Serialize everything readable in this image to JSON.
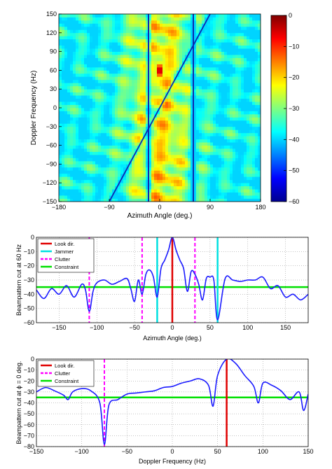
{
  "chart_data": [
    {
      "type": "heatmap",
      "xlabel": "Azimuth Angle (deg.)",
      "ylabel": "Doppler Frequency (Hz)",
      "xlim": [
        -180,
        180
      ],
      "ylim": [
        -150,
        150
      ],
      "xticks": [
        -180,
        -90,
        0,
        90,
        180
      ],
      "yticks": [
        -150,
        -120,
        -90,
        -60,
        -30,
        0,
        30,
        60,
        90,
        120,
        150
      ],
      "colorbar": {
        "min": -60,
        "max": 0,
        "ticks": [
          0,
          -10,
          -20,
          -30,
          -40,
          -50,
          -60
        ]
      },
      "peak": {
        "azimuth": 0,
        "doppler": 60,
        "level": 0
      },
      "jammer_azimuths": [
        -20,
        60
      ],
      "clutter_ridge": {
        "azimuth": [
          -90,
          90
        ],
        "doppler": [
          -150,
          150
        ]
      }
    },
    {
      "type": "line",
      "xlabel": "Azimuth Angle (deg.)",
      "ylabel": "Beampattern cut at 60 Hz",
      "xlim": [
        -180,
        180
      ],
      "ylim": [
        -60,
        0
      ],
      "xticks": [
        -150,
        -100,
        -50,
        0,
        50,
        100,
        150
      ],
      "yticks": [
        0,
        -10,
        -20,
        -30,
        -40,
        -50,
        -60
      ],
      "grid": true,
      "legend": [
        "Look dir.",
        "Jammer",
        "Clutter",
        "Constraint"
      ],
      "legend_position": "top-left",
      "look_dir": [
        0
      ],
      "jammer": [
        -20,
        60
      ],
      "clutter": [
        -110,
        -40,
        30
      ],
      "constraint": -35,
      "x": [
        -180,
        -170,
        -160,
        -150,
        -140,
        -130,
        -120,
        -115,
        -110,
        -105,
        -100,
        -90,
        -80,
        -70,
        -60,
        -55,
        -50,
        -45,
        -40,
        -35,
        -30,
        -25,
        -20,
        -15,
        -10,
        -5,
        0,
        5,
        10,
        15,
        20,
        25,
        30,
        35,
        40,
        45,
        50,
        55,
        60,
        70,
        80,
        90,
        100,
        110,
        120,
        130,
        140,
        150,
        160,
        170,
        180
      ],
      "y": [
        -37,
        -43,
        -36,
        -40,
        -34,
        -42,
        -33,
        -37,
        -52,
        -38,
        -32,
        -30,
        -33,
        -31,
        -29,
        -36,
        -45,
        -30,
        -40,
        -26,
        -23,
        -28,
        -42,
        -22,
        -16,
        -9,
        0,
        -9,
        -16,
        -22,
        -38,
        -24,
        -26,
        -33,
        -44,
        -29,
        -28,
        -30,
        -58,
        -29,
        -30,
        -31,
        -30,
        -30,
        -28,
        -36,
        -34,
        -42,
        -40,
        -44,
        -40
      ]
    },
    {
      "type": "line",
      "xlabel": "Doppler Frequency (Hz)",
      "ylabel": "Beampattern cut at ϕ = 0 deg.",
      "xlim": [
        -150,
        150
      ],
      "ylim": [
        -80,
        0
      ],
      "xticks": [
        -150,
        -100,
        -50,
        0,
        50,
        100,
        150
      ],
      "yticks": [
        0,
        -10,
        -20,
        -30,
        -40,
        -50,
        -60,
        -70,
        -80
      ],
      "grid": true,
      "legend": [
        "Look dir.",
        "Clutter",
        "Constraint"
      ],
      "legend_position": "top-left",
      "look_dir": [
        60
      ],
      "clutter": [
        -75
      ],
      "constraint": -35,
      "x": [
        -150,
        -140,
        -130,
        -120,
        -115,
        -110,
        -100,
        -90,
        -80,
        -75,
        -70,
        -60,
        -50,
        -40,
        -30,
        -20,
        -10,
        0,
        10,
        20,
        30,
        40,
        45,
        50,
        60,
        70,
        80,
        90,
        95,
        100,
        110,
        120,
        130,
        140,
        145,
        150
      ],
      "y": [
        -30,
        -26,
        -29,
        -33,
        -37,
        -30,
        -27,
        -29,
        -40,
        -78,
        -42,
        -37,
        -32,
        -31,
        -30,
        -29,
        -26,
        -25,
        -22,
        -20,
        -18,
        -24,
        -43,
        -15,
        0,
        -4,
        -15,
        -25,
        -40,
        -22,
        -24,
        -29,
        -37,
        -30,
        -47,
        -32
      ]
    }
  ]
}
